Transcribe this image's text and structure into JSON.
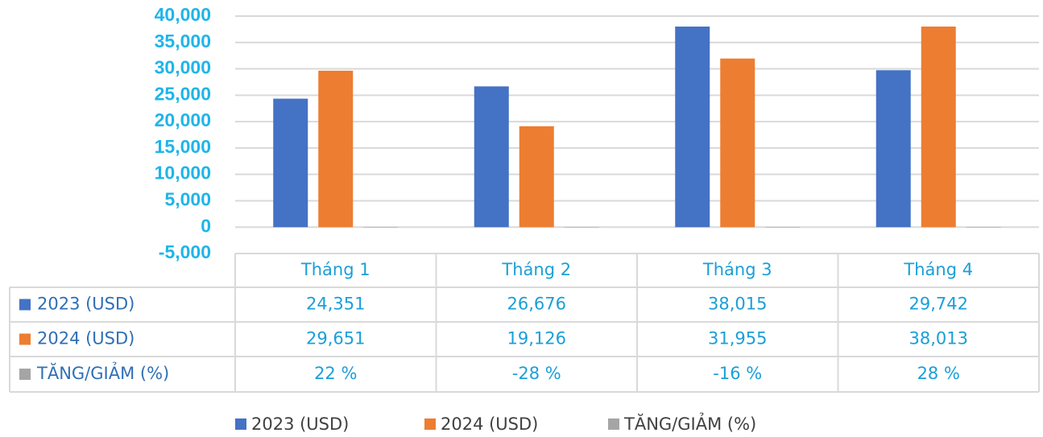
{
  "chart_data": {
    "type": "bar",
    "categories": [
      "Tháng 1",
      "Tháng 2",
      "Tháng 3",
      "Tháng 4"
    ],
    "series": [
      {
        "name": "2023 (USD)",
        "color": "#4472c4",
        "values": [
          24351,
          26676,
          38015,
          29742
        ],
        "value_labels": [
          "24,351",
          "26,676",
          "38,015",
          "29,742"
        ]
      },
      {
        "name": "2024 (USD)",
        "color": "#ed7d31",
        "values": [
          29651,
          19126,
          31955,
          38013
        ],
        "value_labels": [
          "29,651",
          "19,126",
          "31,955",
          "38,013"
        ]
      },
      {
        "name": "TĂNG/GIẢM (%)",
        "color": "#a5a5a5",
        "values": [
          22,
          -28,
          -16,
          28
        ],
        "value_labels": [
          "22 %",
          "-28 %",
          "-16 %",
          "28 %"
        ]
      }
    ],
    "ylim": [
      -5000,
      40000
    ],
    "yticks": [
      {
        "value": -5000,
        "label": "-5,000"
      },
      0,
      {
        "value": 5000,
        "label": "5,000"
      },
      {
        "value": 10000,
        "label": "10,000"
      },
      {
        "value": 15000,
        "label": "15,000"
      },
      {
        "value": 20000,
        "label": "20,000"
      },
      {
        "value": 25000,
        "label": "25,000"
      },
      {
        "value": 30000,
        "label": "30,000"
      },
      {
        "value": 35000,
        "label": "35,000"
      },
      {
        "value": 40000,
        "label": "40,000"
      }
    ],
    "grid": true,
    "legend": "bottom"
  }
}
